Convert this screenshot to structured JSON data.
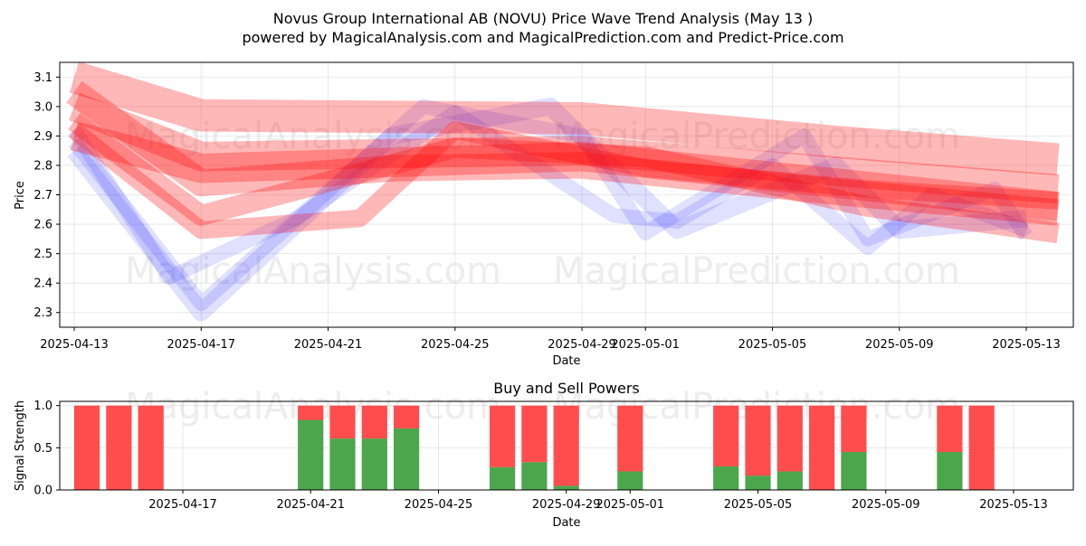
{
  "title": "Novus Group International AB (NOVU) Price Wave Trend Analysis (May 13 )",
  "subtitle": "powered by MagicalAnalysis.com and MagicalPrediction.com and Predict-Price.com",
  "watermarks": [
    "MagicalAnalysis.com",
    "MagicalPrediction.com"
  ],
  "chart_data": [
    {
      "type": "area",
      "ylabel": "Price",
      "xlabel": "Date",
      "ylim": [
        2.25,
        3.15
      ],
      "xlim": [
        "2025-04-13",
        "2025-05-14"
      ],
      "yticks": [
        2.3,
        2.4,
        2.5,
        2.6,
        2.7,
        2.8,
        2.9,
        3.0,
        3.1
      ],
      "xticks": [
        "2025-04-13",
        "2025-04-17",
        "2025-04-21",
        "2025-04-25",
        "2025-04-29",
        "2025-05-01",
        "2025-05-05",
        "2025-05-09",
        "2025-05-13"
      ],
      "grid": true,
      "colors": {
        "red_band": "#ff0000",
        "blue_band": "#0000ff"
      },
      "red_bands": [
        {
          "x": [
            "2025-04-13",
            "2025-04-17",
            "2025-04-29",
            "2025-05-07",
            "2025-05-14"
          ],
          "y": [
            3.1,
            2.97,
            2.96,
            2.88,
            2.82
          ],
          "half_width": 0.055
        },
        {
          "x": [
            "2025-04-13",
            "2025-04-17",
            "2025-04-29",
            "2025-05-07",
            "2025-05-14"
          ],
          "y": [
            3.0,
            2.83,
            2.85,
            2.78,
            2.72
          ],
          "half_width": 0.05
        },
        {
          "x": [
            "2025-04-13",
            "2025-04-17",
            "2025-04-29",
            "2025-05-07",
            "2025-05-14"
          ],
          "y": [
            2.9,
            2.79,
            2.83,
            2.74,
            2.66
          ],
          "half_width": 0.05
        },
        {
          "x": [
            "2025-04-13",
            "2025-04-17",
            "2025-04-23",
            "2025-04-29",
            "2025-05-07",
            "2025-05-14"
          ],
          "y": [
            3.05,
            2.74,
            2.79,
            2.8,
            2.71,
            2.64
          ],
          "half_width": 0.045
        },
        {
          "x": [
            "2025-04-13",
            "2025-04-17",
            "2025-04-25",
            "2025-05-01",
            "2025-05-08",
            "2025-05-14"
          ],
          "y": [
            2.95,
            2.63,
            2.86,
            2.83,
            2.66,
            2.57
          ],
          "half_width": 0.035
        },
        {
          "x": [
            "2025-04-13",
            "2025-04-17",
            "2025-04-22",
            "2025-04-25",
            "2025-05-01",
            "2025-05-08",
            "2025-05-14"
          ],
          "y": [
            2.92,
            2.58,
            2.62,
            2.92,
            2.79,
            2.72,
            2.68
          ],
          "half_width": 0.03
        }
      ],
      "blue_bands": [
        {
          "x": [
            "2025-04-13",
            "2025-04-16",
            "2025-04-20",
            "2025-04-25",
            "2025-04-30",
            "2025-05-02",
            "2025-05-05",
            "2025-05-08",
            "2025-05-10",
            "2025-05-13"
          ],
          "y": [
            2.92,
            2.42,
            2.62,
            2.98,
            2.63,
            2.61,
            2.8,
            2.52,
            2.7,
            2.58
          ],
          "half_width": 0.025
        },
        {
          "x": [
            "2025-04-13",
            "2025-04-17",
            "2025-04-24",
            "2025-04-29",
            "2025-05-01",
            "2025-05-06",
            "2025-05-08",
            "2025-05-12",
            "2025-05-13"
          ],
          "y": [
            2.88,
            2.33,
            3.0,
            2.9,
            2.57,
            2.9,
            2.55,
            2.72,
            2.56
          ],
          "half_width": 0.025
        },
        {
          "x": [
            "2025-04-13",
            "2025-04-17",
            "2025-04-23",
            "2025-04-28",
            "2025-05-02",
            "2025-05-07",
            "2025-05-09",
            "2025-05-13"
          ],
          "y": [
            2.85,
            2.3,
            2.9,
            3.0,
            2.58,
            2.8,
            2.58,
            2.62
          ],
          "half_width": 0.03
        }
      ]
    },
    {
      "type": "bar",
      "title": "Buy and Sell Powers",
      "ylabel": "Signal Strength",
      "xlabel": "Date",
      "ylim": [
        0,
        1.05
      ],
      "yticks": [
        0.0,
        0.5,
        1.0
      ],
      "xticks": [
        "2025-04-17",
        "2025-04-21",
        "2025-04-25",
        "2025-04-29",
        "2025-05-01",
        "2025-05-05",
        "2025-05-09",
        "2025-05-13"
      ],
      "colors": {
        "buy": "#4ca64c",
        "sell": "#ff4d4d"
      },
      "categories": [
        "2025-04-14",
        "2025-04-15",
        "2025-04-16",
        "2025-04-21",
        "2025-04-22",
        "2025-04-23",
        "2025-04-24",
        "2025-04-27",
        "2025-04-28",
        "2025-04-29",
        "2025-05-01",
        "2025-05-04",
        "2025-05-05",
        "2025-05-06",
        "2025-05-07",
        "2025-05-08",
        "2025-05-11",
        "2025-05-12"
      ],
      "series": [
        {
          "values": [
            0,
            0,
            0,
            0.83,
            0.61,
            0.61,
            0.73,
            0.27,
            0.33,
            0.05,
            0.22,
            0.28,
            0.17,
            0.22,
            0,
            0.45,
            0.45,
            0
          ]
        },
        {
          "values": [
            1,
            1,
            1,
            0.17,
            0.39,
            0.39,
            0.27,
            0.73,
            0.67,
            0.95,
            0.78,
            0.72,
            0.83,
            0.78,
            1,
            0.55,
            0.55,
            1
          ]
        }
      ]
    }
  ]
}
